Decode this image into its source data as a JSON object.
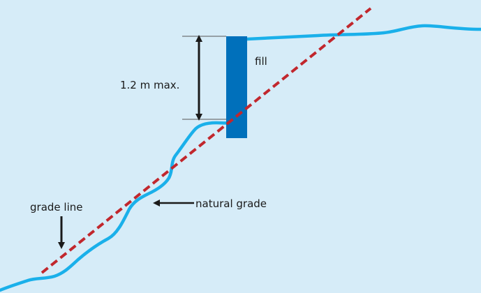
{
  "labels": {
    "fill": "fill",
    "dimension": "1.2 m max.",
    "grade_line": "grade line",
    "natural_grade": "natural grade"
  },
  "colors": {
    "background": "#d6ecf8",
    "natural_grade_line": "#1ab0ea",
    "fill_wall": "#0070bb",
    "grade_line": "#c1272d",
    "arrows": "#1a1a1a"
  },
  "icons": {
    "dimension_arrow": "double-headed-vertical-arrow-icon",
    "grade_line_pointer": "down-arrow-icon",
    "natural_grade_pointer": "left-arrow-icon"
  }
}
